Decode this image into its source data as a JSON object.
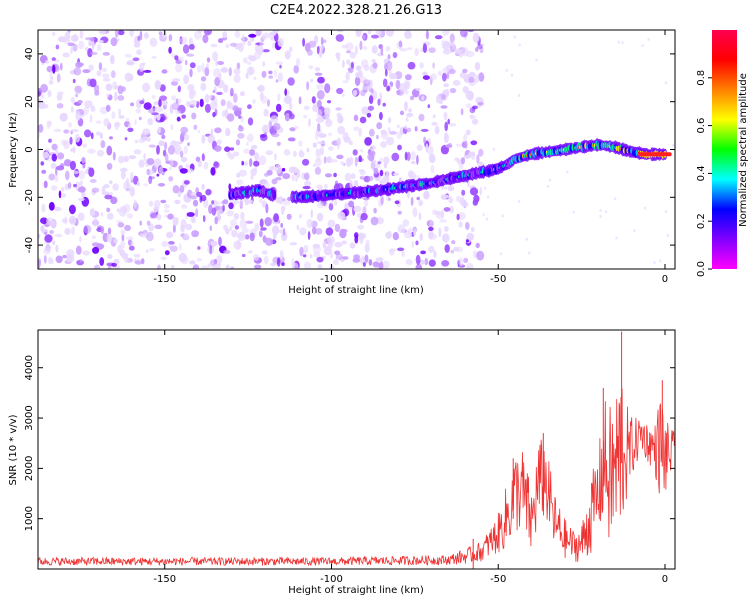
{
  "figure": {
    "title": "C2E4.2022.328.21.26.G13"
  },
  "chart_data": [
    {
      "type": "heatmap",
      "title": "C2E4.2022.328.21.26.G13",
      "xlabel": "Height of straight line (km)",
      "ylabel": "Frequency (Hz)",
      "xlim": [
        -188,
        3
      ],
      "ylim": [
        -50,
        50
      ],
      "xticks": [
        -150,
        -100,
        -50,
        0
      ],
      "yticks": [
        -40,
        -20,
        0,
        20,
        40
      ],
      "grid": false,
      "colorbar": {
        "label": "Normalized spectral amplitude",
        "range": [
          0,
          1
        ],
        "ticks": [
          0.0,
          0.2,
          0.4,
          0.6,
          0.8
        ],
        "colormap": [
          "#ff0050",
          "#ff0000",
          "#ff8000",
          "#ffff00",
          "#00ff00",
          "#00ffff",
          "#0000ff",
          "#8000ff",
          "#ff00ff"
        ]
      },
      "ridge": {
        "x": [
          -132,
          -126,
          -122,
          -118,
          -110,
          -100,
          -92,
          -85,
          -80,
          -75,
          -70,
          -67,
          -64,
          -60,
          -57,
          -53,
          -50,
          -47,
          -45,
          -40,
          -35,
          -30,
          -25,
          -20,
          -15,
          -10,
          -5,
          0
        ],
        "y": [
          -19,
          -18,
          -17,
          -19,
          -20,
          -19,
          -18,
          -17,
          -16,
          -15,
          -14,
          -13,
          -12,
          -11,
          -10,
          -9,
          -8,
          -6,
          -4,
          -2,
          -1,
          0,
          1,
          2,
          1,
          -1,
          -2,
          -2
        ]
      },
      "noise_extent_x": [
        -188,
        -55
      ]
    },
    {
      "type": "line",
      "xlabel": "Height of straight line (km)",
      "ylabel": "SNR (10 * v/v)",
      "xlim": [
        -188,
        3
      ],
      "ylim": [
        0,
        4750
      ],
      "xticks": [
        -150,
        -100,
        -50,
        0
      ],
      "yticks": [
        1000,
        2000,
        3000,
        4000
      ],
      "grid": false,
      "color": "#ee3333",
      "envelope": {
        "x": [
          -188,
          -150,
          -100,
          -65,
          -60,
          -55,
          -50,
          -47,
          -45,
          -43,
          -40,
          -38,
          -36,
          -33,
          -30,
          -27,
          -25,
          -23,
          -20,
          -18,
          -17,
          -15,
          -13,
          -11,
          -9,
          -7,
          -5,
          -3,
          -2,
          -1,
          0,
          3
        ],
        "base": [
          150,
          150,
          150,
          180,
          250,
          350,
          700,
          1100,
          1500,
          1600,
          900,
          1700,
          1800,
          900,
          600,
          450,
          500,
          900,
          1500,
          2200,
          1800,
          1900,
          2500,
          2300,
          2500,
          2700,
          2500,
          2400,
          2400,
          2500,
          2200,
          2400
        ],
        "amp": [
          80,
          80,
          80,
          100,
          150,
          200,
          400,
          700,
          800,
          900,
          700,
          900,
          800,
          600,
          400,
          300,
          400,
          700,
          900,
          1200,
          1400,
          1600,
          1800,
          800,
          500,
          400,
          400,
          500,
          900,
          1200,
          800,
          300
        ]
      },
      "peaks": [
        {
          "x": -57.5,
          "y": 600
        },
        {
          "x": -45.5,
          "y": 2200
        },
        {
          "x": -36.5,
          "y": 2700
        },
        {
          "x": -18.5,
          "y": 3600
        },
        {
          "x": -13.0,
          "y": 4720
        },
        {
          "x": -0.8,
          "y": 3750
        }
      ]
    }
  ]
}
